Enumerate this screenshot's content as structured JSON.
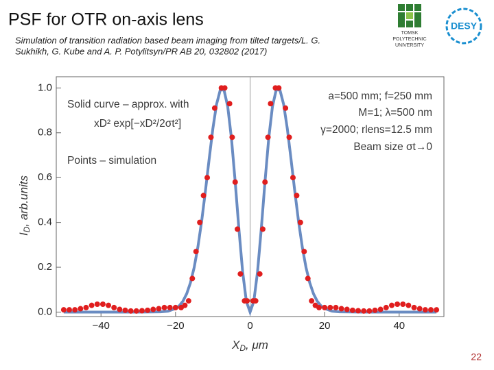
{
  "slide": {
    "title": "PSF for OTR on-axis lens",
    "citation": [
      "Simulation of transition radiation based beam imaging from tilted targets/L. G.",
      "Sukhikh, G. Kube and A. P. Potylitsyn/PR AB 20, 032802 (2017)"
    ],
    "page_number": "22",
    "tpu_logo": [
      "TOMSK",
      "POLYTECHNIC",
      "UNIVERSITY"
    ],
    "desy_logo": "DESY"
  },
  "chart_data": {
    "type": "line",
    "xlabel": {
      "main": "X",
      "sub": "D",
      "rest": ", μm"
    },
    "ylabel": {
      "main": "I",
      "sub": "D",
      "rest": ", arb.units"
    },
    "xlim": [
      -52,
      52
    ],
    "ylim": [
      -0.02,
      1.05
    ],
    "xticks": [
      {
        "value": -40,
        "label": "−40"
      },
      {
        "value": -20,
        "label": "−20"
      },
      0,
      20,
      40
    ],
    "yticks": [
      {
        "value": 0,
        "label": "0.0"
      },
      0.2,
      0.4,
      0.6,
      0.8,
      {
        "value": 1,
        "label": "1.0"
      }
    ],
    "annotations_left": [
      "Solid curve – approx. with",
      "xD² exp[−xD²/2σt²]",
      "Points – simulation"
    ],
    "annotations_right": [
      "a=500 mm; f=250 mm",
      "M=1; λ=500 nm",
      "γ=2000; rlens=12.5 mm",
      "Beam size σt→0"
    ],
    "series": [
      {
        "style": "line",
        "color": "#6a8cc2",
        "x": [
          -50,
          -40,
          -30,
          -24,
          -22,
          -20,
          -19,
          -18,
          -17,
          -16,
          -15,
          -14,
          -13,
          -12,
          -11,
          -10,
          -9,
          -8,
          -7,
          -6,
          -5,
          -4,
          -3,
          -2,
          -1,
          0,
          1,
          2,
          3,
          4,
          5,
          6,
          7,
          8,
          9,
          10,
          11,
          12,
          13,
          14,
          15,
          16,
          17,
          18,
          19,
          20,
          22,
          24,
          30,
          40,
          50
        ],
        "values": [
          0,
          0,
          0,
          0.001,
          0.004,
          0.016,
          0.028,
          0.049,
          0.082,
          0.131,
          0.199,
          0.291,
          0.405,
          0.538,
          0.68,
          0.817,
          0.927,
          0.991,
          0.991,
          0.917,
          0.775,
          0.582,
          0.371,
          0.18,
          0.0475,
          0,
          0.0475,
          0.18,
          0.371,
          0.582,
          0.775,
          0.917,
          0.991,
          0.991,
          0.927,
          0.817,
          0.68,
          0.538,
          0.405,
          0.291,
          0.199,
          0.131,
          0.082,
          0.049,
          0.028,
          0.016,
          0.004,
          0.001,
          0,
          0,
          0
        ]
      },
      {
        "style": "points",
        "color": "#e01e1e",
        "x": [
          -50,
          -48.5,
          -47,
          -45.5,
          -44,
          -42.5,
          -41,
          -39.5,
          -38,
          -36.5,
          -35,
          -33.5,
          -32,
          -30.5,
          -29,
          -27.5,
          -26,
          -24.5,
          -23,
          -21.5,
          -20,
          -18.5,
          -17.5,
          -16.5,
          -15.5,
          -14.5,
          -13.5,
          -12.5,
          -11.5,
          -10.5,
          -9.5,
          -7.7,
          -6.8,
          -5.5,
          -4.8,
          -4,
          -3.4,
          -2.6,
          -1.5,
          -0.8,
          0.8,
          1.5,
          2.6,
          3.4,
          4,
          4.8,
          5.5,
          6.8,
          7.7,
          9.5,
          10.5,
          11.5,
          12.5,
          13.5,
          14.5,
          15.5,
          16.5,
          17.5,
          18.5,
          20,
          21.5,
          23,
          24.5,
          26,
          27.5,
          29,
          30.5,
          32,
          33.5,
          35,
          36.5,
          38,
          39.5,
          41,
          42.5,
          44,
          45.5,
          47,
          48.5,
          50
        ],
        "values": [
          0.01,
          0.01,
          0.01,
          0.015,
          0.02,
          0.03,
          0.035,
          0.035,
          0.03,
          0.02,
          0.012,
          0.008,
          0.005,
          0.005,
          0.006,
          0.008,
          0.012,
          0.015,
          0.02,
          0.02,
          0.02,
          0.02,
          0.03,
          0.05,
          0.15,
          0.27,
          0.4,
          0.52,
          0.6,
          0.78,
          0.91,
          1.0,
          1.0,
          0.93,
          0.78,
          0.58,
          0.37,
          0.17,
          0.05,
          0.05,
          0.05,
          0.05,
          0.17,
          0.37,
          0.58,
          0.78,
          0.93,
          1.0,
          1.0,
          0.91,
          0.78,
          0.6,
          0.52,
          0.4,
          0.27,
          0.15,
          0.05,
          0.03,
          0.02,
          0.02,
          0.02,
          0.02,
          0.015,
          0.012,
          0.008,
          0.006,
          0.005,
          0.005,
          0.008,
          0.012,
          0.02,
          0.03,
          0.035,
          0.035,
          0.03,
          0.02,
          0.015,
          0.01,
          0.01,
          0.01
        ]
      }
    ]
  }
}
